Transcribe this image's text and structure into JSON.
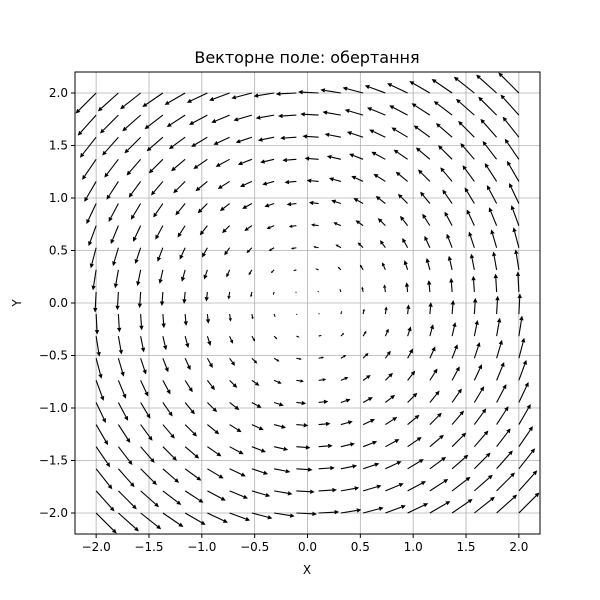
{
  "chart_data": {
    "type": "quiver",
    "title": "Векторне поле: обертання",
    "xlabel": "X",
    "ylabel": "Y",
    "xlim": [
      -2.2,
      2.2
    ],
    "ylim": [
      -2.2,
      2.2
    ],
    "grid": true,
    "field": {
      "u": "-y",
      "v": "x",
      "x_range": [
        -2,
        2
      ],
      "y_range": [
        -2,
        2
      ],
      "points_per_axis": 20
    },
    "x_ticks": [
      -2.0,
      -1.5,
      -1.0,
      -0.5,
      0.0,
      0.5,
      1.0,
      1.5,
      2.0
    ],
    "y_ticks": [
      -2.0,
      -1.5,
      -1.0,
      -0.5,
      0.0,
      0.5,
      1.0,
      1.5,
      2.0
    ],
    "x_tick_labels": [
      "−2.0",
      "−1.5",
      "−1.0",
      "−0.5",
      "0.0",
      "0.5",
      "1.0",
      "1.5",
      "2.0"
    ],
    "y_tick_labels": [
      "−2.0",
      "−1.5",
      "−1.0",
      "−0.5",
      "0.0",
      "0.5",
      "1.0",
      "1.5",
      "2.0"
    ],
    "colors": {
      "arrow": "#000000",
      "grid": "#b0b0b0"
    }
  }
}
